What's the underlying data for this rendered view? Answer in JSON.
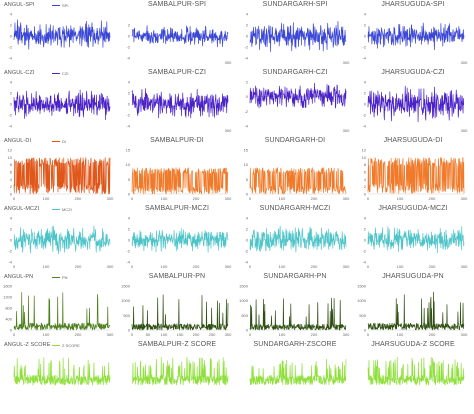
{
  "chart_data": [
    {
      "id": "angul-spi",
      "type": "line",
      "title": "ANGUL-SPI",
      "legend": "SPI",
      "color": "#3a46d6",
      "ylim": [
        -4,
        4
      ],
      "yticks": [
        -4,
        -2,
        0,
        2,
        4
      ],
      "xticks": [],
      "gen": {
        "kind": "std",
        "amp": 1.7,
        "n": 300,
        "seed": 11
      }
    },
    {
      "id": "sambalpur-spi",
      "type": "line",
      "title": "SAMBALPUR-SPI",
      "legend": "",
      "color": "#3a46d6",
      "ylim": [
        -4,
        4
      ],
      "yticks": [
        -4,
        -2,
        0,
        2
      ],
      "xticks": [
        300
      ],
      "gen": {
        "kind": "std",
        "amp": 1.2,
        "n": 300,
        "seed": 12
      }
    },
    {
      "id": "sundargarh-spi",
      "type": "line",
      "title": "SUNDARGARH-SPI",
      "legend": "",
      "color": "#3a46d6",
      "ylim": [
        -4,
        4
      ],
      "yticks": [
        -4,
        -2,
        0,
        2,
        4
      ],
      "xticks": [
        300
      ],
      "gen": {
        "kind": "std",
        "amp": 1.8,
        "n": 300,
        "seed": 13
      }
    },
    {
      "id": "jharsuguda-spi",
      "type": "line",
      "title": "JHARSUGUDA-SPI",
      "legend": "",
      "color": "#3a46d6",
      "ylim": [
        -4,
        4
      ],
      "yticks": [
        -4,
        -2,
        0,
        2,
        4
      ],
      "xticks": [
        300
      ],
      "gen": {
        "kind": "std",
        "amp": 1.4,
        "n": 300,
        "seed": 14
      }
    },
    {
      "id": "angul-czi",
      "type": "line",
      "title": "ANGUL-CZI",
      "legend": "CZI",
      "color": "#4a22c8",
      "ylim": [
        -4,
        4
      ],
      "yticks": [
        -4,
        -2,
        0,
        2,
        4
      ],
      "xticks": [],
      "gen": {
        "kind": "std",
        "amp": 1.6,
        "n": 300,
        "seed": 21
      }
    },
    {
      "id": "sambalpur-czi",
      "type": "line",
      "title": "SAMBALPUR-CZI",
      "legend": "",
      "color": "#4a22c8",
      "ylim": [
        -4,
        4
      ],
      "yticks": [
        -4,
        -2,
        0,
        2,
        4
      ],
      "xticks": [
        300
      ],
      "gen": {
        "kind": "std",
        "amp": 1.7,
        "n": 300,
        "seed": 22
      }
    },
    {
      "id": "sundargarh-czi",
      "type": "line",
      "title": "SUNDARGARH-CZI",
      "legend": "",
      "color": "#4a22c8",
      "ylim": [
        -4,
        2
      ],
      "yticks": [
        -4,
        -2,
        0,
        2
      ],
      "xticks": [
        300
      ],
      "gen": {
        "kind": "std",
        "amp": 1.1,
        "n": 300,
        "seed": 23
      }
    },
    {
      "id": "jharsuguda-czi",
      "type": "line",
      "title": "JHARSUGUDA-CZI",
      "legend": "",
      "color": "#4a22c8",
      "ylim": [
        -4,
        4
      ],
      "yticks": [
        -4,
        -2,
        0,
        2,
        4
      ],
      "xticks": [
        300
      ],
      "gen": {
        "kind": "std",
        "amp": 1.9,
        "n": 300,
        "seed": 24
      }
    },
    {
      "id": "angul-di",
      "type": "line",
      "title": "ANGUL-DI",
      "legend": "DI",
      "color": "#e0571a",
      "ylim": [
        0,
        12
      ],
      "yticks": [
        0,
        2,
        4,
        6,
        8,
        10,
        12
      ],
      "xticks": [
        0,
        100,
        200,
        300
      ],
      "gen": {
        "kind": "di",
        "amp": 10,
        "n": 300,
        "seed": 31
      }
    },
    {
      "id": "sambalpur-di",
      "type": "line",
      "title": "SAMBALPUR-DI",
      "legend": "",
      "color": "#f07a2a",
      "ylim": [
        0,
        15
      ],
      "yticks": [
        0,
        5,
        10,
        15
      ],
      "xticks": [
        0,
        100,
        200,
        300
      ],
      "gen": {
        "kind": "di",
        "amp": 9,
        "n": 300,
        "seed": 32
      }
    },
    {
      "id": "sundargarh-di",
      "type": "line",
      "title": "SUNDARGARH-DI",
      "legend": "",
      "color": "#f07a2a",
      "ylim": [
        0,
        15
      ],
      "yticks": [
        0,
        5,
        10,
        15
      ],
      "xticks": [
        0,
        100,
        200,
        300
      ],
      "gen": {
        "kind": "di",
        "amp": 9,
        "n": 300,
        "seed": 33
      }
    },
    {
      "id": "jharsuguda-di",
      "type": "line",
      "title": "JHARSUGUDA-DI",
      "legend": "",
      "color": "#f07a2a",
      "ylim": [
        0,
        12
      ],
      "yticks": [
        0,
        2,
        4,
        6,
        8,
        10,
        12
      ],
      "xticks": [
        0,
        100,
        200,
        300
      ],
      "gen": {
        "kind": "di",
        "amp": 10,
        "n": 300,
        "seed": 34
      }
    },
    {
      "id": "angul-mczi",
      "type": "line",
      "title": "ANGUL-MCZI",
      "legend": "MCZI",
      "color": "#4cc4c8",
      "ylim": [
        -4,
        4
      ],
      "yticks": [
        -4,
        -2,
        0,
        2,
        4
      ],
      "xticks": [
        0,
        100,
        200,
        300
      ],
      "gen": {
        "kind": "std",
        "amp": 1.5,
        "n": 300,
        "seed": 41
      }
    },
    {
      "id": "sambalpur-mczi",
      "type": "line",
      "title": "SAMBALPUR-MCZI",
      "legend": "",
      "color": "#4cc4c8",
      "ylim": [
        -4,
        4
      ],
      "yticks": [
        -4,
        -2,
        0,
        2,
        4
      ],
      "xticks": [
        0,
        100,
        200,
        300
      ],
      "gen": {
        "kind": "std",
        "amp": 1.3,
        "n": 300,
        "seed": 42
      }
    },
    {
      "id": "sundargarh-mczi",
      "type": "line",
      "title": "SUNDARGARH-MCZI",
      "legend": "",
      "color": "#4cc4c8",
      "ylim": [
        -4,
        4
      ],
      "yticks": [
        -4,
        -2,
        0,
        2,
        4
      ],
      "xticks": [
        0,
        100,
        200,
        300
      ],
      "gen": {
        "kind": "std",
        "amp": 1.6,
        "n": 300,
        "seed": 43
      }
    },
    {
      "id": "jharsuguda-mczi",
      "type": "line",
      "title": "JHARSUGUDA-MCZI",
      "legend": "",
      "color": "#4cc4c8",
      "ylim": [
        -4,
        4
      ],
      "yticks": [
        -4,
        -2,
        0,
        2,
        4
      ],
      "xticks": [
        0,
        100,
        200,
        300
      ],
      "gen": {
        "kind": "std",
        "amp": 1.5,
        "n": 300,
        "seed": 44
      }
    },
    {
      "id": "angul-pn",
      "type": "line",
      "title": "ANGUL-PN",
      "legend": "PN",
      "color": "#4e7f1e",
      "ylim": [
        0,
        1600
      ],
      "yticks": [
        0,
        400,
        800,
        1200,
        1600
      ],
      "xticks": [
        0,
        100,
        200,
        300
      ],
      "gen": {
        "kind": "pn",
        "amp": 1400,
        "n": 300,
        "seed": 51
      }
    },
    {
      "id": "sambalpur-pn",
      "type": "line",
      "title": "SAMBALPUR-PN",
      "legend": "",
      "color": "#2f4f12",
      "ylim": [
        0,
        1500
      ],
      "yticks": [
        0,
        500,
        1000,
        1500
      ],
      "xticks": [
        0,
        50,
        100,
        150,
        200,
        250,
        300
      ],
      "gen": {
        "kind": "pn",
        "amp": 1200,
        "n": 300,
        "seed": 52
      }
    },
    {
      "id": "sundargarh-pn",
      "type": "line",
      "title": "SUNDARGARH-PN",
      "legend": "",
      "color": "#2f4f12",
      "ylim": [
        0,
        1500
      ],
      "yticks": [
        0,
        500,
        1000,
        1500
      ],
      "xticks": [
        0,
        100,
        200,
        300
      ],
      "gen": {
        "kind": "pn",
        "amp": 1100,
        "n": 300,
        "seed": 53
      }
    },
    {
      "id": "jharsuguda-pn",
      "type": "line",
      "title": "JHARSUGUDA-PN",
      "legend": "",
      "color": "#2f4f12",
      "ylim": [
        0,
        1500
      ],
      "yticks": [
        0,
        500,
        1000,
        1500
      ],
      "xticks": [
        0,
        100,
        200,
        300
      ],
      "gen": {
        "kind": "pn",
        "amp": 1300,
        "n": 300,
        "seed": 54
      }
    },
    {
      "id": "angul-zscore",
      "type": "line",
      "title": "ANGUL-Z SCORE",
      "legend": "Z SCORE",
      "color": "#8fe03a",
      "ylim": [
        -3,
        4
      ],
      "yticks": [],
      "xticks": [],
      "gen": {
        "kind": "z",
        "amp": 1.6,
        "n": 300,
        "seed": 61
      }
    },
    {
      "id": "sambalpur-zscore",
      "type": "line",
      "title": "SAMBALPUR-Z SCORE",
      "legend": "",
      "color": "#8fe03a",
      "ylim": [
        -3,
        4
      ],
      "yticks": [],
      "xticks": [],
      "gen": {
        "kind": "z",
        "amp": 1.6,
        "n": 300,
        "seed": 62
      }
    },
    {
      "id": "sundargarh-zscore",
      "type": "line",
      "title": "SUNDARGARH-ZSCORE",
      "legend": "",
      "color": "#8fe03a",
      "ylim": [
        -3,
        4
      ],
      "yticks": [],
      "xticks": [],
      "gen": {
        "kind": "z",
        "amp": 1.5,
        "n": 300,
        "seed": 63
      }
    },
    {
      "id": "jharsuguda-zscore",
      "type": "line",
      "title": "JHARSUGUDA-Z SCORE",
      "legend": "",
      "color": "#8fe03a",
      "ylim": [
        -3,
        4
      ],
      "yticks": [],
      "xticks": [],
      "gen": {
        "kind": "z",
        "amp": 1.6,
        "n": 300,
        "seed": 64
      }
    }
  ]
}
